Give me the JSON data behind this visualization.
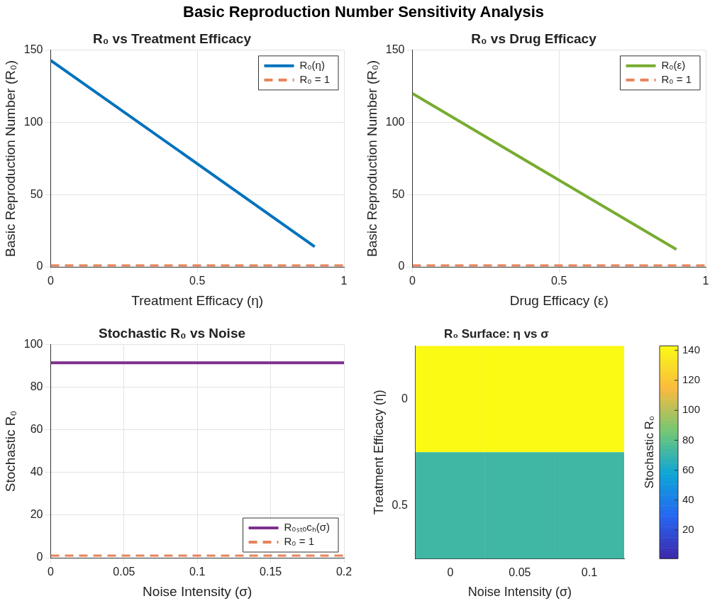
{
  "chart_data": [
    {
      "type": "line",
      "title": "R₀ vs Treatment Efficacy",
      "xlabel": "Treatment Efficacy (η)",
      "ylabel": "Basic Reproduction Number (R₀)",
      "x": [
        0,
        0.9
      ],
      "series": [
        {
          "name": "R₀(η)",
          "color": "#0072bd",
          "values": [
            143,
            14
          ]
        }
      ],
      "ref_lines": [
        {
          "axis": "y",
          "value": 1,
          "label": "R₀ = 1",
          "color": "#e8825a",
          "line_style": "dashed"
        }
      ],
      "xlim": [
        0,
        1
      ],
      "xticks": [
        0,
        0.5,
        1
      ],
      "ylim": [
        0,
        150
      ],
      "yticks": [
        0,
        50,
        100,
        150
      ],
      "grid": true,
      "legend": "top right",
      "annotations": [
        "Basic Reproduction Number Sensitivity Analysis"
      ]
    },
    {
      "type": "line",
      "title": "R₀ vs Drug Efficacy",
      "xlabel": "Drug Efficacy (ε)",
      "ylabel": "Basic Reproduction Number (R₀)",
      "x": [
        0,
        0.9
      ],
      "series": [
        {
          "name": "R₀(ε)",
          "color": "#77ac30",
          "values": [
            120,
            12
          ]
        }
      ],
      "ref_lines": [
        {
          "axis": "y",
          "value": 1,
          "label": "R₀ = 1",
          "color": "#e8825a",
          "line_style": "dashed"
        }
      ],
      "xlim": [
        0,
        1
      ],
      "xticks": [
        0,
        0.5,
        1
      ],
      "ylim": [
        0,
        150
      ],
      "yticks": [
        0,
        50,
        100,
        150
      ],
      "grid": true,
      "legend": "top right"
    },
    {
      "type": "line",
      "title": "Stochastic R₀ vs Noise",
      "xlabel": "Noise Intensity (σ)",
      "ylabel": "Stochastic R₀",
      "x": [
        0,
        0.2
      ],
      "series": [
        {
          "name": "R₀ₛₜₒcₕ(σ)",
          "color": "#7e2f8e",
          "values": [
            91.5,
            91.5
          ]
        }
      ],
      "ref_lines": [
        {
          "axis": "y",
          "value": 1,
          "label": "R₀ = 1",
          "color": "#e8825a",
          "line_style": "dashed"
        }
      ],
      "xlim": [
        0,
        0.2
      ],
      "xticks": [
        0,
        0.05,
        0.1,
        0.15,
        0.2
      ],
      "ylim": [
        0,
        100
      ],
      "yticks": [
        0,
        20,
        40,
        60,
        80,
        100
      ],
      "grid": true,
      "legend": "bottom right"
    },
    {
      "type": "heatmap",
      "title": "R₀ Surface: η vs σ",
      "xlabel": "Noise Intensity (σ)",
      "ylabel": "Treatment Efficacy (η)",
      "clabel": "Stochastic R₀",
      "categories": [
        "0",
        "0.05",
        "0.1"
      ],
      "y_categories": [
        "0",
        "0.5"
      ],
      "cells": [
        [
          143,
          143,
          143
        ],
        [
          72,
          72,
          72
        ]
      ],
      "clim": [
        1,
        143
      ],
      "cticks": [
        20,
        40,
        60,
        80,
        100,
        120,
        140
      ]
    }
  ]
}
